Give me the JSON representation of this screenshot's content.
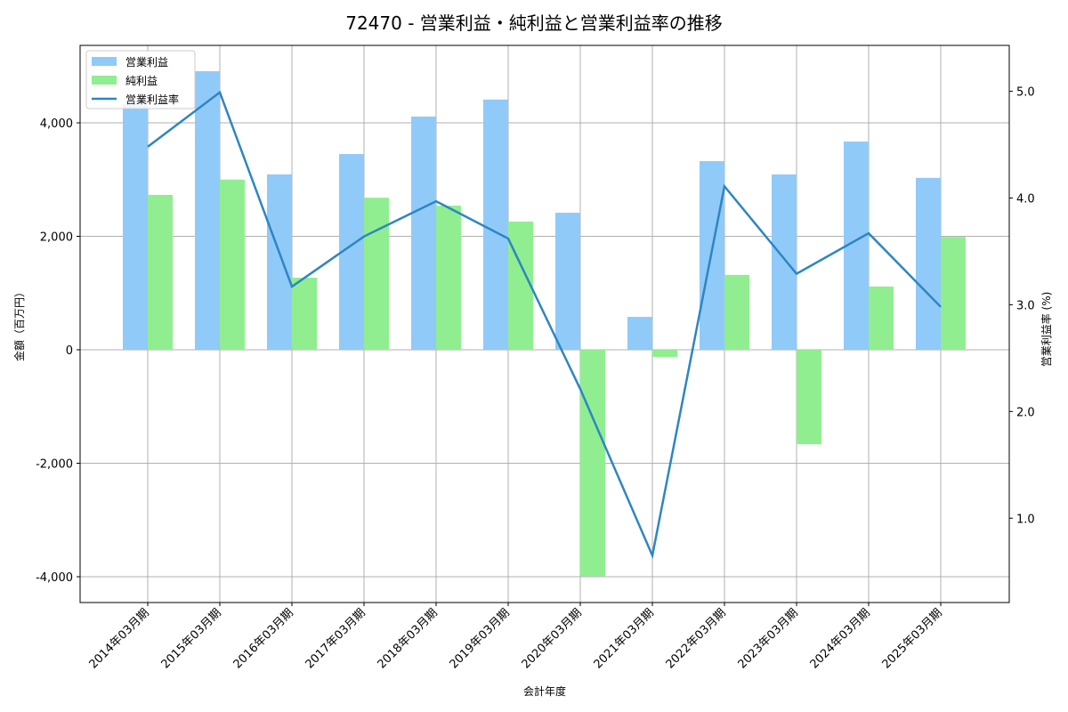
{
  "chart_data": {
    "type": "bar",
    "title": "72470 - 営業利益・純利益と営業利益率の推移",
    "xlabel": "会計年度",
    "ylabel": "金額（百万円）",
    "y2label": "営業利益率 (%)",
    "categories": [
      "2014年03月期",
      "2015年03月期",
      "2016年03月期",
      "2017年03月期",
      "2018年03月期",
      "2019年03月期",
      "2020年03月期",
      "2021年03月期",
      "2022年03月期",
      "2023年03月期",
      "2024年03月期",
      "2025年03月期"
    ],
    "series": [
      {
        "name": "営業利益",
        "type": "bar",
        "axis": "left",
        "color": "#90CAF9",
        "values": [
          4330,
          4910,
          3090,
          3450,
          4110,
          4410,
          2415,
          580,
          3325,
          3090,
          3670,
          3030
        ]
      },
      {
        "name": "純利益",
        "type": "bar",
        "axis": "left",
        "color": "#90EE90",
        "values": [
          2730,
          3000,
          1270,
          2680,
          2540,
          2260,
          -3990,
          -125,
          1320,
          -1665,
          1115,
          1990
        ]
      },
      {
        "name": "営業利益率",
        "type": "line",
        "axis": "right",
        "color": "#2E86C1",
        "values": [
          4.48,
          4.99,
          3.17,
          3.64,
          3.97,
          3.62,
          2.21,
          0.65,
          4.11,
          3.29,
          3.67,
          2.98
        ]
      }
    ],
    "ylim": [
      -4455,
      5365
    ],
    "y2lim": [
      0.21,
      5.43
    ],
    "yticks": [
      -4000,
      -2000,
      0,
      2000,
      4000
    ],
    "ytick_labels": [
      "-4,000",
      "-2,000",
      "0",
      "2,000",
      "4,000"
    ],
    "y2ticks": [
      1.0,
      2.0,
      3.0,
      4.0,
      5.0
    ],
    "y2tick_labels": [
      "1.0",
      "2.0",
      "3.0",
      "4.0",
      "5.0"
    ],
    "grid": true,
    "legend_position": "upper left"
  }
}
